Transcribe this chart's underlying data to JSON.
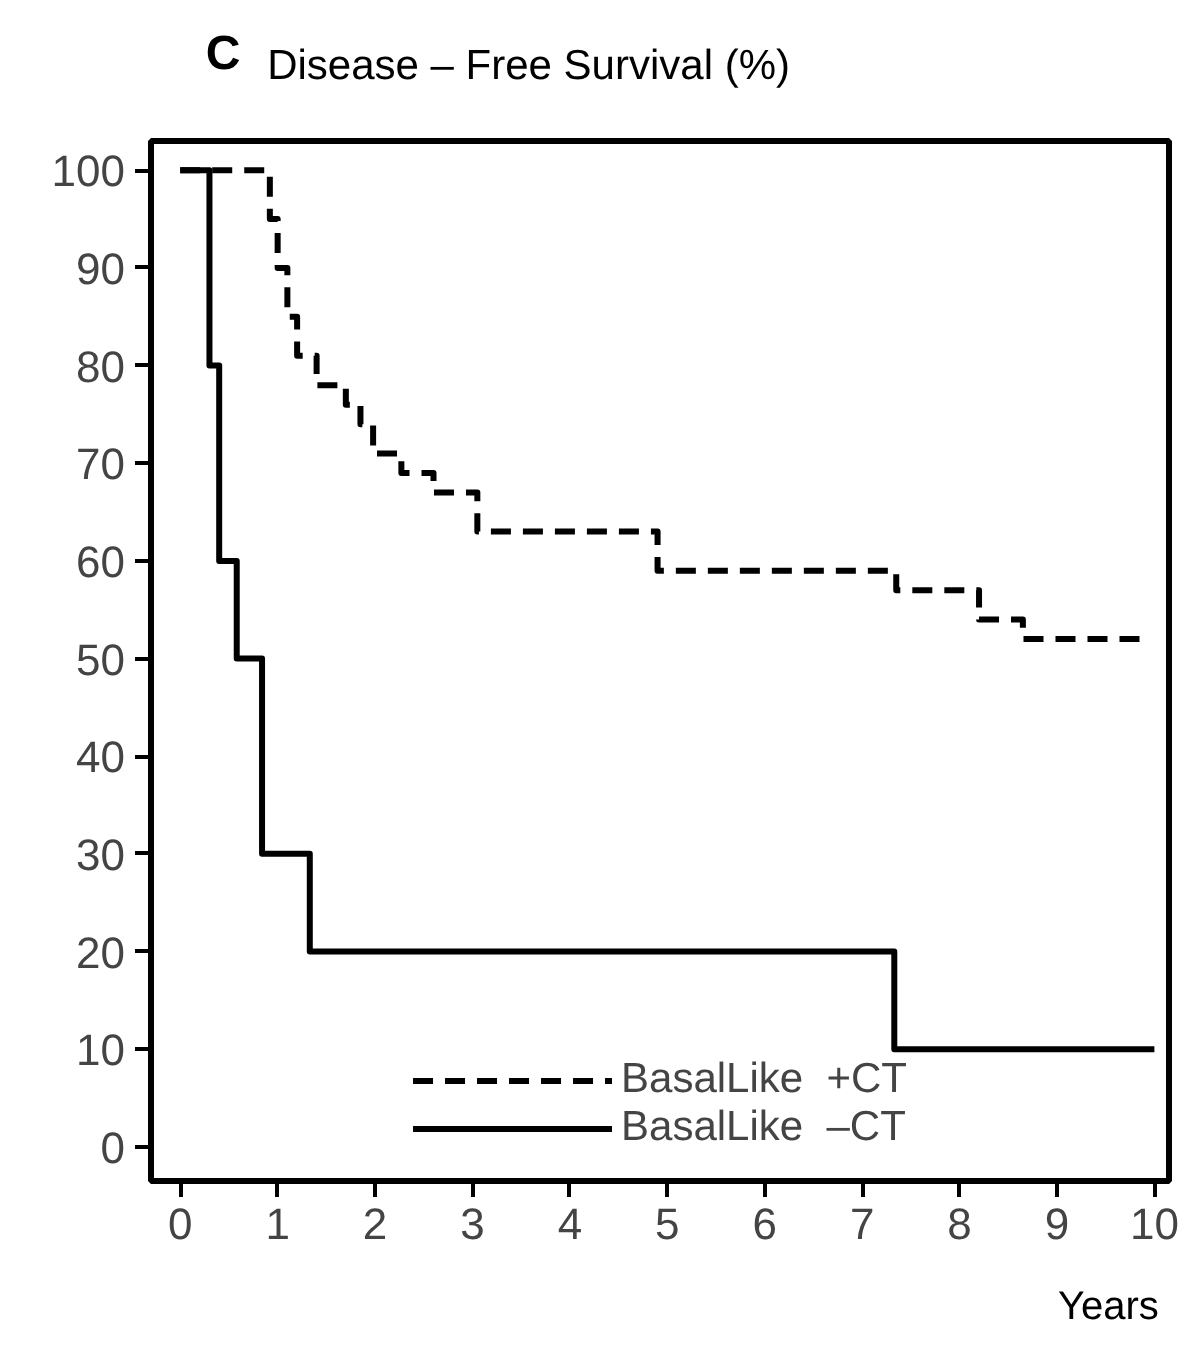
{
  "chart_data": {
    "type": "step",
    "title": "C",
    "ylabel": "Disease – Free Survival (%)",
    "xlabel": "Years",
    "xlim": [
      -0.3,
      10.15
    ],
    "ylim": [
      -3.5,
      103
    ],
    "xticks": [
      0,
      1,
      2,
      3,
      4,
      5,
      6,
      7,
      8,
      9,
      10
    ],
    "yticks": [
      0,
      10,
      20,
      30,
      40,
      50,
      60,
      70,
      80,
      90,
      100
    ],
    "grid": false,
    "legend": "bottom",
    "series": [
      {
        "name": "BasalLike  +CT",
        "color": "#000000",
        "line_style": "dashed",
        "x": [
          0,
          0.92,
          1.0,
          1.1,
          1.2,
          1.4,
          1.7,
          1.85,
          1.98,
          2.27,
          2.6,
          3.05,
          4.9,
          7.35,
          8.2,
          8.65,
          9.85
        ],
        "values": [
          100,
          95,
          90,
          85,
          81,
          78,
          76,
          74,
          71,
          69,
          67,
          63,
          59,
          57,
          54,
          52,
          52
        ]
      },
      {
        "name": "BasalLike  –CT",
        "color": "#000000",
        "line_style": "solid",
        "x": [
          0,
          0.3,
          0.4,
          0.58,
          0.84,
          1.33,
          7.33,
          10
        ],
        "values": [
          100,
          80,
          60,
          50,
          30,
          20,
          10,
          10
        ]
      }
    ]
  }
}
